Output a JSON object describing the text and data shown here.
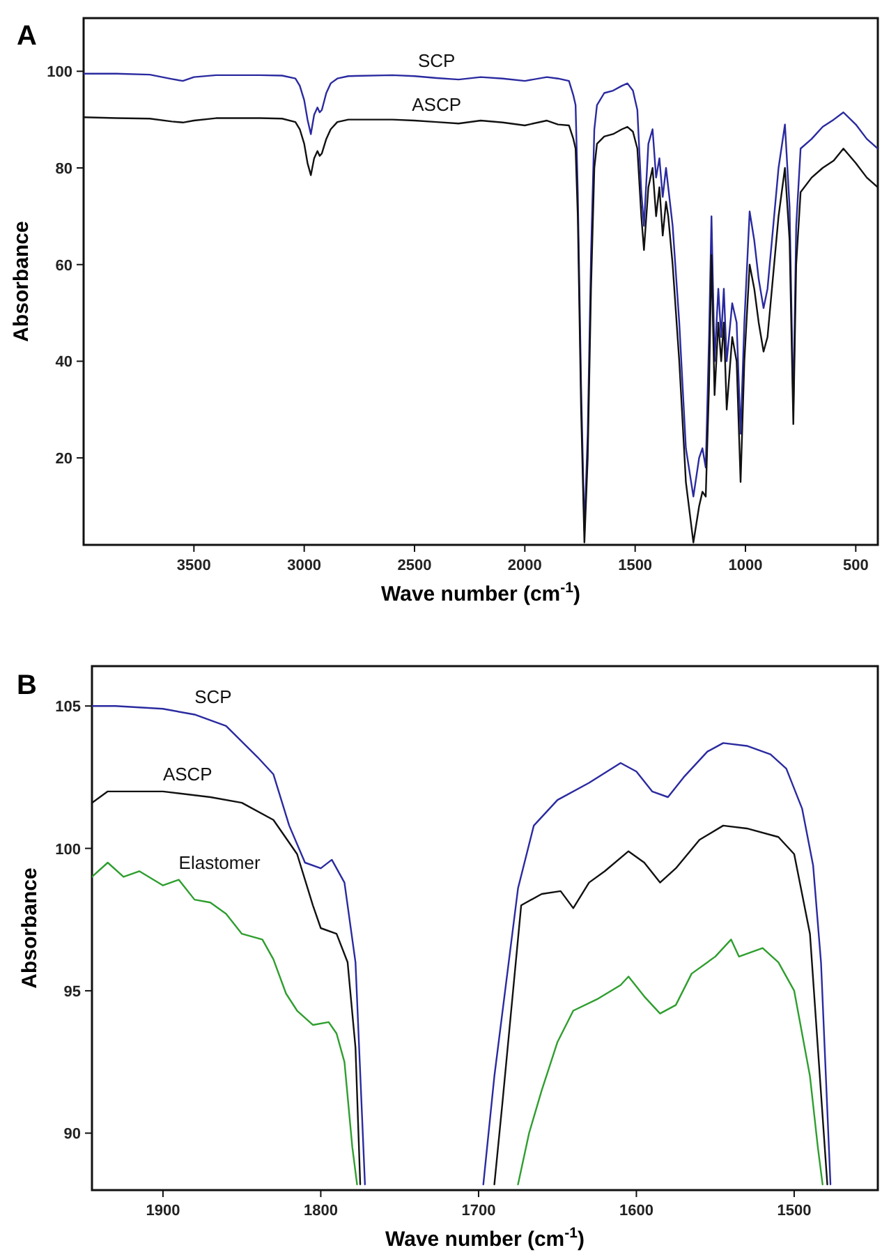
{
  "chart_data": [
    {
      "type": "line",
      "title": "A",
      "xlabel": "Wave number (cm$^{-1}$)",
      "ylabel": "Absorbance",
      "xlim": [
        4000,
        400
      ],
      "ylim": [
        2,
        111
      ],
      "xticks": [
        3500,
        3000,
        2500,
        2000,
        1500,
        1000,
        500
      ],
      "yticks": [
        20,
        40,
        60,
        80,
        100
      ],
      "series": [
        {
          "name": "SCP",
          "color": "#2a2aa0",
          "x": [
            4000,
            3850,
            3700,
            3600,
            3550,
            3500,
            3400,
            3200,
            3100,
            3040,
            3020,
            3000,
            2985,
            2970,
            2955,
            2940,
            2930,
            2920,
            2900,
            2880,
            2850,
            2800,
            2600,
            2500,
            2400,
            2300,
            2200,
            2100,
            2000,
            1900,
            1850,
            1800,
            1780,
            1770,
            1760,
            1745,
            1730,
            1715,
            1700,
            1685,
            1673,
            1640,
            1600,
            1560,
            1535,
            1510,
            1490,
            1472,
            1460,
            1440,
            1421,
            1405,
            1390,
            1375,
            1360,
            1350,
            1330,
            1300,
            1270,
            1236,
            1210,
            1195,
            1180,
            1165,
            1154,
            1140,
            1123,
            1110,
            1098,
            1085,
            1060,
            1040,
            1022,
            1005,
            981,
            960,
            940,
            918,
            900,
            880,
            850,
            821,
            800,
            783,
            770,
            750,
            700,
            650,
            600,
            556,
            500,
            450,
            400
          ],
          "values": [
            99.5,
            99.5,
            99.3,
            98.4,
            98,
            98.8,
            99.2,
            99.2,
            99.1,
            98.5,
            97,
            94,
            90,
            87,
            91,
            92.5,
            91.5,
            92,
            95.5,
            97.5,
            98.5,
            99,
            99.2,
            99,
            98.6,
            98.3,
            98.8,
            98.5,
            98,
            98.8,
            98.5,
            98,
            95,
            93,
            75,
            35,
            5,
            25,
            62,
            88,
            93,
            95.5,
            96,
            97,
            97.5,
            96,
            92,
            75,
            68,
            85,
            88,
            78,
            82,
            74,
            80,
            76,
            68,
            48,
            22,
            12,
            20,
            22,
            18,
            45,
            70,
            40,
            55,
            45,
            55,
            40,
            52,
            48,
            25,
            48,
            71,
            65,
            57,
            51,
            55,
            65,
            80,
            89,
            72,
            30,
            68,
            84,
            86,
            88.5,
            90,
            91.5,
            89,
            86,
            84
          ]
        },
        {
          "name": "ASCP",
          "color": "#111111",
          "x": [
            4000,
            3850,
            3700,
            3600,
            3550,
            3500,
            3400,
            3200,
            3100,
            3040,
            3020,
            3000,
            2985,
            2970,
            2955,
            2940,
            2930,
            2920,
            2900,
            2880,
            2850,
            2800,
            2600,
            2500,
            2400,
            2300,
            2200,
            2100,
            2000,
            1900,
            1850,
            1800,
            1780,
            1770,
            1760,
            1745,
            1730,
            1715,
            1700,
            1685,
            1673,
            1640,
            1600,
            1560,
            1535,
            1510,
            1490,
            1472,
            1460,
            1440,
            1421,
            1405,
            1390,
            1375,
            1360,
            1350,
            1330,
            1300,
            1270,
            1236,
            1210,
            1195,
            1180,
            1165,
            1154,
            1140,
            1123,
            1110,
            1098,
            1085,
            1060,
            1040,
            1022,
            1005,
            981,
            960,
            940,
            918,
            900,
            880,
            850,
            821,
            800,
            783,
            770,
            750,
            700,
            650,
            600,
            556,
            500,
            450,
            400
          ],
          "values": [
            90.5,
            90.3,
            90.2,
            89.6,
            89.4,
            89.8,
            90.3,
            90.3,
            90.2,
            89.5,
            88,
            85,
            81,
            78.5,
            82,
            83.5,
            82.5,
            83,
            86,
            88,
            89.5,
            90,
            90,
            89.8,
            89.5,
            89.2,
            89.8,
            89.4,
            88.8,
            89.8,
            89,
            88.8,
            86,
            84,
            70,
            30,
            2.5,
            20,
            55,
            80,
            85,
            86.5,
            87,
            88,
            88.5,
            87.5,
            84,
            70,
            63,
            76,
            80,
            70,
            76,
            66,
            73,
            70,
            60,
            40,
            15,
            2.5,
            10,
            13,
            12,
            35,
            62,
            33,
            48,
            40,
            48,
            30,
            45,
            40,
            15,
            40,
            60,
            55,
            48,
            42,
            45,
            55,
            70,
            80,
            65,
            27,
            60,
            75,
            78,
            80,
            81.5,
            84,
            81,
            78,
            76
          ]
        }
      ]
    },
    {
      "type": "line",
      "title": "B",
      "xlabel": "Wave number (cm$^{-1}$)",
      "ylabel": "Absorbance",
      "xlim": [
        1945,
        1447
      ],
      "ylim": [
        88,
        106.4
      ],
      "xticks": [
        1900,
        1800,
        1700,
        1600,
        1500
      ],
      "yticks": [
        90,
        95,
        100,
        105
      ],
      "series": [
        {
          "name": "SCP",
          "color": "#2a2aa0",
          "x": [
            1945,
            1930,
            1900,
            1880,
            1860,
            1840,
            1830,
            1820,
            1810,
            1800,
            1793,
            1785,
            1778,
            1772,
            1730,
            1697,
            1690,
            1675,
            1665,
            1650,
            1630,
            1610,
            1600,
            1590,
            1580,
            1570,
            1555,
            1545,
            1530,
            1515,
            1505,
            1495,
            1488,
            1483,
            1477
          ],
          "values": [
            105,
            105,
            104.9,
            104.7,
            104.3,
            103.2,
            102.6,
            100.8,
            99.5,
            99.3,
            99.6,
            98.8,
            96,
            88.2,
            null,
            88.2,
            92,
            98.6,
            100.8,
            101.7,
            102.3,
            103,
            102.7,
            102,
            101.8,
            102.5,
            103.4,
            103.7,
            103.6,
            103.3,
            102.8,
            101.4,
            99.4,
            96,
            88.2
          ]
        },
        {
          "name": "ASCP",
          "color": "#111111",
          "x": [
            1945,
            1935,
            1900,
            1870,
            1850,
            1830,
            1815,
            1805,
            1800,
            1790,
            1783,
            1778,
            1775,
            1730,
            1690,
            1685,
            1673,
            1660,
            1648,
            1640,
            1630,
            1620,
            1605,
            1595,
            1585,
            1575,
            1560,
            1545,
            1530,
            1510,
            1500,
            1490,
            1485,
            1479
          ],
          "values": [
            101.6,
            102,
            102,
            101.8,
            101.6,
            101,
            99.8,
            98,
            97.2,
            97,
            96,
            93,
            88.2,
            null,
            88.2,
            91,
            98,
            98.4,
            98.5,
            97.9,
            98.8,
            99.2,
            99.9,
            99.5,
            98.8,
            99.3,
            100.3,
            100.8,
            100.7,
            100.4,
            99.8,
            97,
            93,
            88.2
          ]
        },
        {
          "name": "Elastomer",
          "color": "#2e9e2e",
          "x": [
            1945,
            1935,
            1925,
            1915,
            1900,
            1890,
            1880,
            1870,
            1860,
            1850,
            1837,
            1830,
            1822,
            1815,
            1805,
            1795,
            1790,
            1785,
            1780,
            1777,
            1730,
            1675,
            1668,
            1660,
            1650,
            1640,
            1625,
            1610,
            1605,
            1595,
            1585,
            1575,
            1565,
            1550,
            1540,
            1535,
            1520,
            1510,
            1500,
            1490,
            1485,
            1482
          ],
          "values": [
            99,
            99.5,
            99,
            99.2,
            98.7,
            98.9,
            98.2,
            98.1,
            97.7,
            97,
            96.8,
            96.1,
            94.9,
            94.3,
            93.8,
            93.9,
            93.5,
            92.5,
            89.5,
            88.2,
            null,
            88.2,
            90,
            91.5,
            93.2,
            94.3,
            94.7,
            95.2,
            95.5,
            94.8,
            94.2,
            94.5,
            95.6,
            96.2,
            96.8,
            96.2,
            96.5,
            96,
            95,
            92,
            89.5,
            88.2
          ]
        }
      ]
    }
  ]
}
